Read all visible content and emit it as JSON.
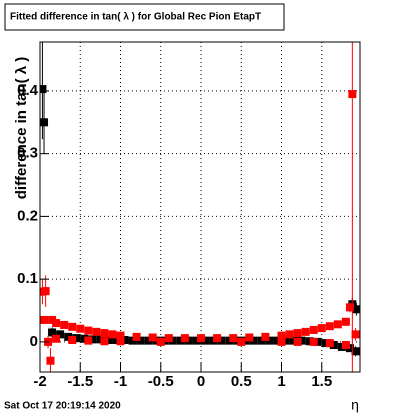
{
  "chart_data": {
    "type": "scatter",
    "title": "Fitted difference in tan( λ ) for Global Rec Pion EtapT",
    "y_label": "difference in tan( λ )",
    "x_label": "η",
    "footer": "Sat Oct 17 20:19:14 2020",
    "xlim": [
      -2,
      1.975
    ],
    "ylim": [
      -0.048,
      0.478
    ],
    "xticks": [
      -2,
      -1.5,
      -1,
      -0.5,
      0,
      0.5,
      1,
      1.5
    ],
    "yticks": [
      0,
      0.1,
      0.2,
      0.3,
      0.4
    ],
    "grid": true,
    "series": [
      {
        "color": "#000000",
        "x": [
          -1.97,
          -1.95,
          -1.85,
          -1.75,
          -1.65,
          -1.55,
          -1.45,
          -1.35,
          -1.25,
          -1.15,
          -1.05,
          -0.95,
          -0.85,
          -0.75,
          -0.65,
          -0.55,
          -0.45,
          -0.35,
          -0.25,
          -0.15,
          -0.05,
          0.05,
          0.15,
          0.25,
          0.35,
          0.45,
          0.55,
          0.65,
          0.75,
          0.85,
          0.95,
          1.05,
          1.15,
          1.25,
          1.35,
          1.45,
          1.55,
          1.65,
          1.75,
          1.85,
          1.88,
          1.92,
          1.93
        ],
        "values": [
          0.403,
          0.35,
          0.015,
          0.012,
          0.008,
          0.006,
          0.005,
          0.004,
          0.004,
          0.003,
          0.003,
          0.003,
          0.002,
          0.002,
          0.002,
          0.002,
          0.002,
          0.002,
          0.002,
          0.002,
          0.002,
          0.002,
          0.002,
          0.002,
          0.002,
          0.002,
          0.002,
          0.002,
          0.002,
          0.002,
          0.002,
          0.002,
          0.002,
          0.002,
          0.001,
          0,
          -0.002,
          -0.005,
          -0.008,
          -0.01,
          0.06,
          -0.015,
          0.052
        ],
        "errors": [
          0.08,
          0.05,
          0.008,
          0.004,
          0.003,
          0.002,
          0.002,
          0.002,
          0.002,
          0.002,
          0.002,
          0.002,
          0.002,
          0.002,
          0.002,
          0.002,
          0.002,
          0.002,
          0.002,
          0.002,
          0.002,
          0.002,
          0.002,
          0.002,
          0.002,
          0.002,
          0.002,
          0.002,
          0.002,
          0.002,
          0.002,
          0.002,
          0.002,
          0.002,
          0.002,
          0.002,
          0.002,
          0.003,
          0.004,
          0.005,
          0.01,
          0.008,
          0.01
        ]
      },
      {
        "color": "#ff0000",
        "x": [
          -1.97,
          -1.93,
          -1.95,
          -1.9,
          -1.87,
          -1.85,
          -1.8,
          -1.7,
          -1.6,
          -1.5,
          -1.4,
          -1.3,
          -1.2,
          -1.1,
          -1.0,
          -0.8,
          -0.6,
          -0.4,
          -0.2,
          0,
          0.2,
          0.4,
          0.6,
          0.8,
          1.0,
          1.1,
          1.2,
          1.3,
          1.4,
          1.5,
          1.6,
          1.7,
          1.8,
          1.85,
          1.88,
          1.92,
          -1.8,
          -1.6,
          -1.4,
          -1.2,
          -1.0,
          -0.5,
          0.5,
          1.0,
          1.2,
          1.4,
          1.6,
          1.8
        ],
        "values": [
          0.08,
          0.081,
          0.035,
          0.0,
          -0.03,
          0.035,
          0.03,
          0.027,
          0.024,
          0.021,
          0.018,
          0.016,
          0.014,
          0.012,
          0.01,
          0.008,
          0.007,
          0.006,
          0.006,
          0.006,
          0.006,
          0.006,
          0.007,
          0.008,
          0.01,
          0.012,
          0.014,
          0.016,
          0.019,
          0.022,
          0.025,
          0.028,
          0.032,
          0.055,
          0.395,
          0.012,
          0.005,
          0.003,
          0.002,
          0.001,
          0.001,
          0,
          0,
          0,
          0,
          0,
          -0.002,
          -0.005
        ],
        "errors": [
          0.02,
          0.025,
          0.004,
          0.01,
          0.02,
          0.004,
          0.003,
          0.003,
          0.002,
          0.002,
          0.002,
          0.002,
          0.002,
          0.002,
          0.002,
          0.002,
          0.002,
          0.002,
          0.002,
          0.002,
          0.002,
          0.002,
          0.002,
          0.002,
          0.002,
          0.002,
          0.002,
          0.002,
          0.002,
          0.002,
          0.002,
          0.003,
          0.003,
          0.008,
          0.5,
          0.01,
          0.002,
          0.002,
          0.002,
          0.002,
          0.002,
          0.002,
          0.002,
          0.002,
          0.002,
          0.002,
          0.002,
          0.003
        ]
      }
    ]
  }
}
